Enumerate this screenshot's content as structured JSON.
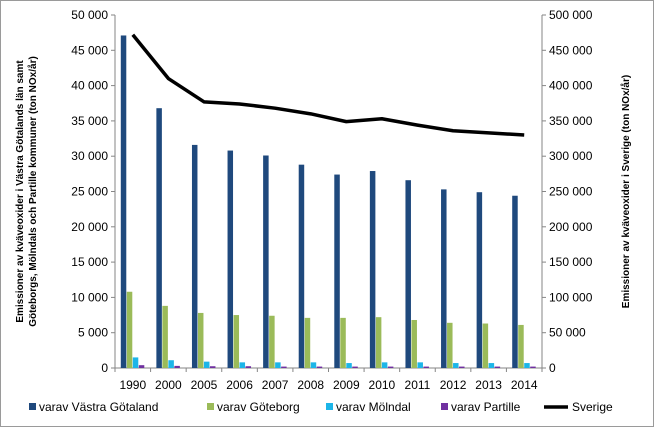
{
  "chart_data": {
    "type": "bar",
    "categories": [
      "1990",
      "2000",
      "2005",
      "2006",
      "2007",
      "2008",
      "2009",
      "2010",
      "2011",
      "2012",
      "2013",
      "2014"
    ],
    "series": [
      {
        "name": "varav Västra Götaland",
        "type": "bar",
        "axis": "left",
        "color": "#1f497d",
        "values": [
          47100,
          36800,
          31600,
          30800,
          30100,
          28800,
          27400,
          27900,
          26600,
          25300,
          24900,
          24400
        ]
      },
      {
        "name": "varav Göteborg",
        "type": "bar",
        "axis": "left",
        "color": "#9bbb59",
        "values": [
          10800,
          8800,
          7800,
          7500,
          7400,
          7100,
          7100,
          7200,
          6800,
          6400,
          6300,
          6100
        ]
      },
      {
        "name": "varav Mölndal",
        "type": "bar",
        "axis": "left",
        "color": "#1cb5e8",
        "values": [
          1500,
          1100,
          900,
          800,
          800,
          800,
          700,
          800,
          800,
          700,
          700,
          700
        ]
      },
      {
        "name": "varav Partille",
        "type": "bar",
        "axis": "left",
        "color": "#7030a0",
        "values": [
          400,
          300,
          250,
          250,
          200,
          200,
          200,
          200,
          200,
          200,
          200,
          200
        ]
      },
      {
        "name": "Sverige",
        "type": "line",
        "axis": "right",
        "color": "#000000",
        "values": [
          472000,
          410000,
          377000,
          374000,
          368000,
          360000,
          349000,
          353000,
          344000,
          336000,
          333000,
          330000
        ]
      }
    ],
    "ylabel": "Emissioner av kväveoxider i Västra Götalands län samt Göteborgs, Mölndals och Partille kommuner (ton NOx/år)",
    "y2label": "Emissioner av kväveoxider i Sverige (ton NOx/år)",
    "ylim": [
      0,
      50000
    ],
    "y2lim": [
      0,
      500000
    ],
    "yticks": [
      "0",
      "5 000",
      "10 000",
      "15 000",
      "20 000",
      "25 000",
      "30 000",
      "35 000",
      "40 000",
      "45 000",
      "50 000"
    ],
    "y2ticks": [
      "0",
      "50 000",
      "100 000",
      "150 000",
      "200 000",
      "250 000",
      "300 000",
      "350 000",
      "400 000",
      "450 000",
      "500 000"
    ],
    "grid": false,
    "legend": "bottom"
  }
}
